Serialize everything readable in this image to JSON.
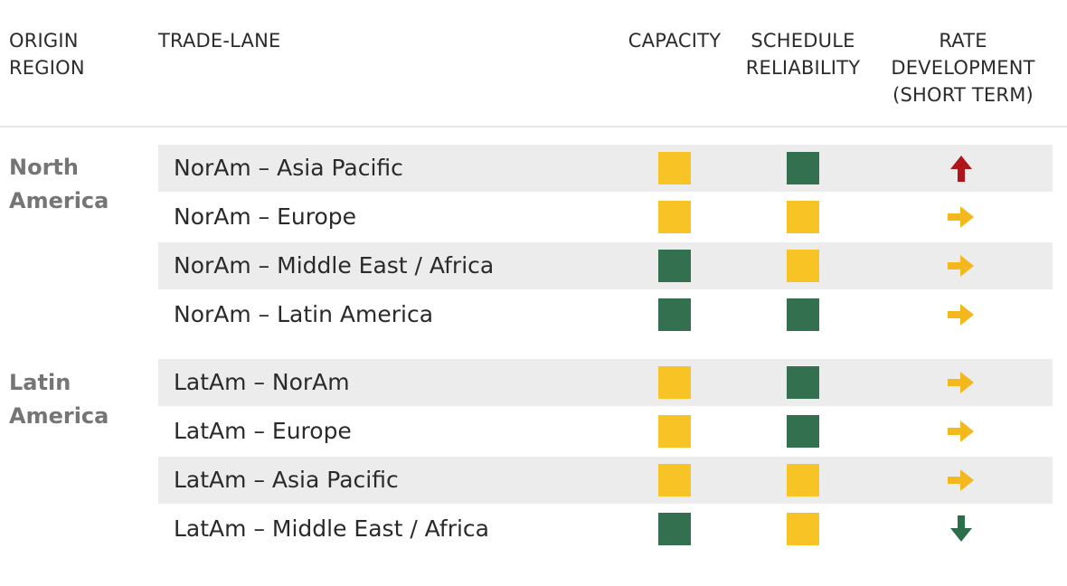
{
  "header": {
    "origin_region": "ORIGIN\nREGION",
    "trade_lane": "TRADE-LANE",
    "capacity": "CAPACITY",
    "schedule_reliability": "SCHEDULE\nRELIABILITY",
    "rate_development": "RATE\nDEVELOPMENT\n(SHORT TERM)"
  },
  "colors": {
    "yellow": "#f7c325",
    "green": "#337050",
    "red": "#b0151c",
    "arrow_yellow": "#f2b81e",
    "arrow_green": "#2d6e4a"
  },
  "regions": [
    {
      "label": "North\nAmerica",
      "rows": [
        {
          "lane": "NorAm – Asia Pacific",
          "capacity": "yellow",
          "schedule": "green",
          "rate": "up"
        },
        {
          "lane": "NorAm – Europe",
          "capacity": "yellow",
          "schedule": "yellow",
          "rate": "right"
        },
        {
          "lane": "NorAm – Middle East / Africa",
          "capacity": "green",
          "schedule": "yellow",
          "rate": "right"
        },
        {
          "lane": "NorAm – Latin America",
          "capacity": "green",
          "schedule": "green",
          "rate": "right"
        }
      ]
    },
    {
      "label": "Latin\nAmerica",
      "rows": [
        {
          "lane": "LatAm – NorAm",
          "capacity": "yellow",
          "schedule": "green",
          "rate": "right"
        },
        {
          "lane": "LatAm – Europe",
          "capacity": "yellow",
          "schedule": "green",
          "rate": "right"
        },
        {
          "lane": "LatAm – Asia Pacific",
          "capacity": "yellow",
          "schedule": "yellow",
          "rate": "right"
        },
        {
          "lane": "LatAm – Middle East / Africa",
          "capacity": "green",
          "schedule": "yellow",
          "rate": "down"
        }
      ]
    }
  ]
}
